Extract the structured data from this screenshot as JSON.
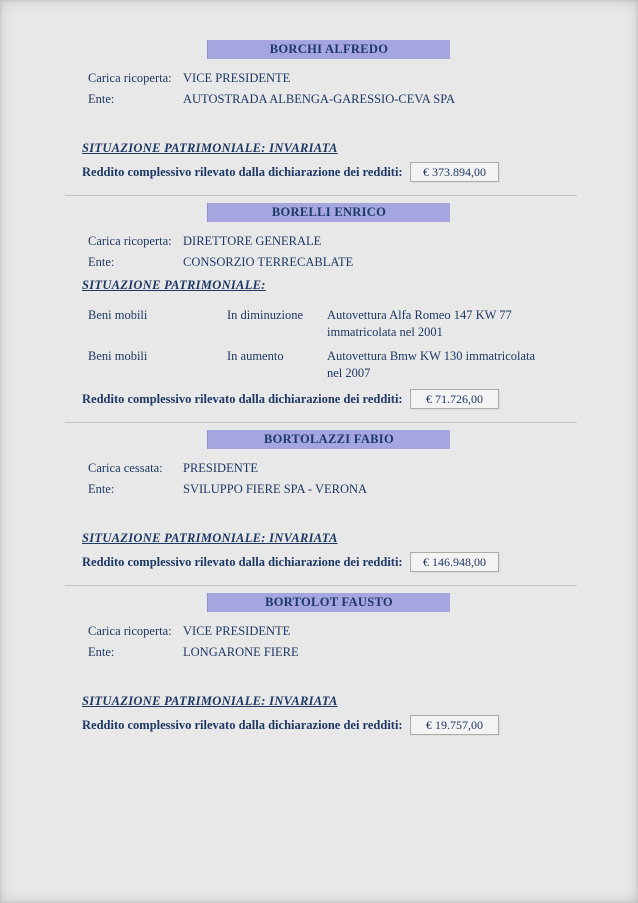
{
  "colors": {
    "name_bar_background": "#a5a6e0",
    "text_navy": "#1c3864",
    "page_background": "#e8e8e8",
    "value_box_background": "#f3f3f3",
    "value_box_border": "#ababab"
  },
  "sections": [
    {
      "name": "BORCHI ALFREDO",
      "fields": [
        {
          "label": "Carica ricoperta:",
          "value": "VICE PRESIDENTE"
        },
        {
          "label": "Ente:",
          "value": "AUTOSTRADA ALBENGA-GARESSIO-CEVA SPA"
        }
      ],
      "situazione": "SITUAZIONE PATRIMONIALE: INVARIATA",
      "reddito_label": "Reddito complessivo rilevato dalla dichiarazione dei redditi:",
      "reddito_value": "€ 373.894,00"
    },
    {
      "name": "BORELLI ENRICO",
      "fields": [
        {
          "label": "Carica ricoperta:",
          "value": "DIRETTORE GENERALE"
        },
        {
          "label": "Ente:",
          "value": "CONSORZIO TERRECABLATE"
        }
      ],
      "situazione": "SITUAZIONE PATRIMONIALE:",
      "assets": [
        {
          "category": "Beni mobili",
          "change": "In diminuzione",
          "description": "Autovettura Alfa Romeo 147 KW 77 immatricolata nel 2001"
        },
        {
          "category": "Beni mobili",
          "change": "In aumento",
          "description": "Autovettura Bmw KW 130 immatricolata nel 2007"
        }
      ],
      "reddito_label": "Reddito complessivo rilevato dalla dichiarazione dei redditi:",
      "reddito_value": "€ 71.726,00"
    },
    {
      "name": "BORTOLAZZI FABIO",
      "fields": [
        {
          "label": "Carica cessata:",
          "value": "PRESIDENTE"
        },
        {
          "label": "Ente:",
          "value": "SVILUPPO FIERE SPA - VERONA"
        }
      ],
      "situazione": "SITUAZIONE PATRIMONIALE: INVARIATA",
      "reddito_label": "Reddito complessivo rilevato dalla dichiarazione dei redditi:",
      "reddito_value": "€ 146.948,00"
    },
    {
      "name": "BORTOLOT FAUSTO",
      "fields": [
        {
          "label": "Carica ricoperta:",
          "value": "VICE PRESIDENTE"
        },
        {
          "label": "Ente:",
          "value": "LONGARONE FIERE"
        }
      ],
      "situazione": "SITUAZIONE PATRIMONIALE: INVARIATA",
      "reddito_label": "Reddito complessivo rilevato dalla dichiarazione dei redditi:",
      "reddito_value": "€ 19.757,00"
    }
  ]
}
